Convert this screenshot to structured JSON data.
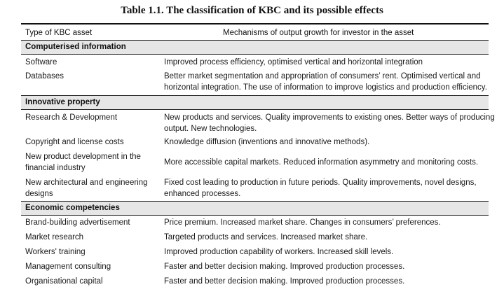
{
  "title": "Table 1.1. The classification of KBC and its possible effects",
  "columns": {
    "asset": "Type of KBC asset",
    "mechanism": "Mechanisms of output growth for investor in the asset"
  },
  "sections": [
    {
      "name": "Computerised information",
      "rows": [
        {
          "asset": [
            "Software"
          ],
          "mechanism": [
            "Improved process efficiency, optimised vertical and horizontal integration"
          ]
        },
        {
          "asset": [
            "Databases"
          ],
          "mechanism": [
            "Better market segmentation and appropriation of consumers’ rent. Optimised vertical and",
            "horizontal integration. The use of information to improve logistics and production efficiency."
          ]
        }
      ]
    },
    {
      "name": "Innovative property",
      "rows": [
        {
          "asset": [
            "Research & Development"
          ],
          "mechanism": [
            "New products and services. Quality improvements to existing ones. Better ways of producing",
            "output. New technologies."
          ]
        },
        {
          "asset": [
            "Copyright and license costs"
          ],
          "mechanism": [
            "Knowledge diffusion (inventions and innovative methods)."
          ]
        },
        {
          "asset": [
            "New product development in the",
            "financial industry"
          ],
          "mechanism": [
            "More accessible capital markets. Reduced information asymmetry and monitoring costs."
          ]
        },
        {
          "asset": [
            "New architectural and engineering",
            "designs"
          ],
          "mechanism": [
            "Fixed cost leading to production in future periods. Quality improvements, novel designs,",
            "enhanced processes."
          ]
        }
      ]
    },
    {
      "name": "Economic competencies",
      "rows": [
        {
          "asset": [
            "Brand-building advertisement"
          ],
          "mechanism": [
            "Price premium. Increased market share. Changes in consumers’ preferences."
          ]
        },
        {
          "asset": [
            "Market research"
          ],
          "mechanism": [
            "Targeted products and services. Increased market share."
          ]
        },
        {
          "asset": [
            "Workers' training"
          ],
          "mechanism": [
            "Improved production capability of workers. Increased skill levels."
          ]
        },
        {
          "asset": [
            "Management consulting"
          ],
          "mechanism": [
            "Faster and better decision making. Improved production processes."
          ]
        },
        {
          "asset": [
            "Organisational capital"
          ],
          "mechanism": [
            "Faster and better decision making. Improved production processes."
          ]
        }
      ]
    }
  ]
}
